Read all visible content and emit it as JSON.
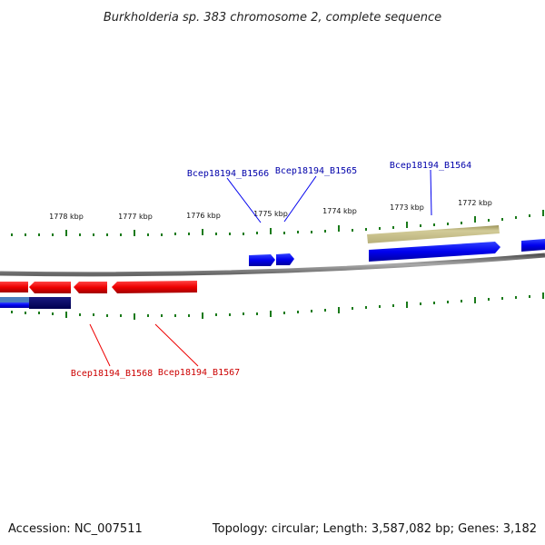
{
  "title": "Burkholderia sp. 383 chromosome 2, complete sequence",
  "footer": {
    "accession": "Accession: NC_007511",
    "summary": "Topology: circular; Length: 3,587,082 bp; Genes: 3,182"
  },
  "scale_labels": [
    "1778 kbp",
    "1777 kbp",
    "1776 kbp",
    "1775 kbp",
    "1774 kbp",
    "1773 kbp",
    "1772 kbp"
  ],
  "gene_labels": {
    "forward": [
      "Bcep18194_B1566",
      "Bcep18194_B1565",
      "Bcep18194_B1564"
    ],
    "reverse": [
      "Bcep18194_B1568",
      "Bcep18194_B1567"
    ]
  },
  "colors": {
    "forward_gene": "#0000ee",
    "reverse_gene": "#ee0000",
    "tick": "#1a7a1a",
    "backbone": "#888888",
    "forward_label": "#0000aa",
    "reverse_label": "#cc0000",
    "khaki_feature": "#b8b07a"
  }
}
